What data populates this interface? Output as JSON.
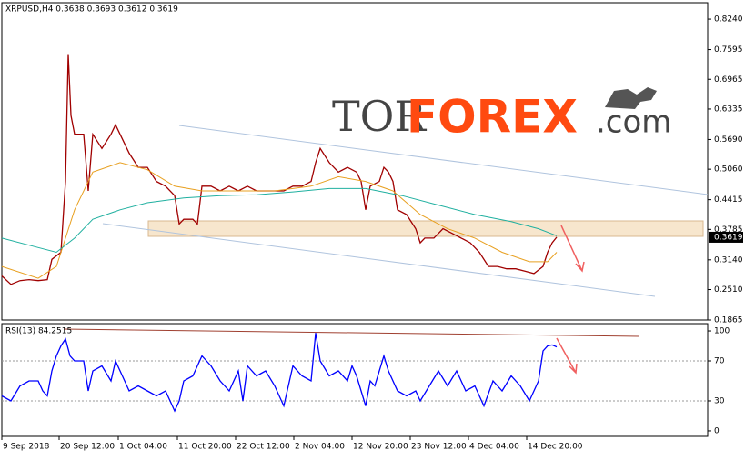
{
  "chart_data": [
    {
      "type": "line",
      "title": "XRPUSD,H4  0.3638 0.3693 0.3612 0.3619",
      "current_price": 0.3619,
      "xlim": [
        0,
        776
      ],
      "ylim": [
        0.1865,
        0.8588
      ],
      "yticks": [
        {
          "value": 0.824,
          "label": "0.8240"
        },
        0.7595,
        0.6965,
        0.6335,
        {
          "value": 0.569,
          "label": "0.5690"
        },
        {
          "value": 0.506,
          "label": "0.5060"
        },
        0.4415,
        0.3785,
        {
          "value": 0.314,
          "label": "0.3140"
        },
        {
          "value": 0.251,
          "label": "0.2510"
        },
        0.1865
      ],
      "xticks": [
        {
          "value": 0,
          "label": "9 Sep 2018"
        },
        {
          "value": 63,
          "label": "20 Sep 12:00"
        },
        {
          "value": 128,
          "label": "1 Oct 04:00"
        },
        {
          "value": 193,
          "label": "11 Oct 20:00"
        },
        {
          "value": 257,
          "label": "22 Oct 12:00"
        },
        {
          "value": 321,
          "label": "2 Nov 04:00"
        },
        {
          "value": 385,
          "label": "12 Nov 20:00"
        },
        {
          "value": 449,
          "label": "23 Nov 12:00"
        },
        {
          "value": 513,
          "label": "4 Dec 04:00"
        },
        {
          "value": 577,
          "label": "14 Dec 20:00"
        }
      ],
      "series": [
        {
          "color": "#a00000",
          "x": [
            0,
            10,
            20,
            30,
            40,
            50,
            55,
            65,
            70,
            73,
            76,
            80,
            90,
            95,
            100,
            110,
            120,
            125,
            130,
            140,
            150,
            160,
            170,
            180,
            190,
            195,
            200,
            210,
            215,
            220,
            230,
            240,
            250,
            260,
            270,
            280,
            290,
            300,
            310,
            320,
            330,
            340,
            345,
            350,
            360,
            370,
            380,
            390,
            395,
            400,
            405,
            415,
            420,
            425,
            430,
            435,
            445,
            455,
            460,
            465,
            475,
            485,
            495,
            505,
            515,
            525,
            535,
            545,
            555,
            565,
            575,
            585,
            595,
            600,
            605,
            610
          ],
          "values": [
            0.28,
            0.262,
            0.27,
            0.272,
            0.27,
            0.272,
            0.315,
            0.33,
            0.48,
            0.75,
            0.62,
            0.58,
            0.58,
            0.46,
            0.58,
            0.55,
            0.58,
            0.6,
            0.58,
            0.54,
            0.51,
            0.51,
            0.48,
            0.47,
            0.45,
            0.39,
            0.4,
            0.4,
            0.39,
            0.47,
            0.47,
            0.46,
            0.47,
            0.46,
            0.47,
            0.46,
            0.46,
            0.46,
            0.46,
            0.47,
            0.47,
            0.48,
            0.52,
            0.55,
            0.52,
            0.5,
            0.51,
            0.5,
            0.48,
            0.42,
            0.47,
            0.48,
            0.51,
            0.5,
            0.48,
            0.42,
            0.41,
            0.38,
            0.35,
            0.36,
            0.36,
            0.38,
            0.37,
            0.36,
            0.35,
            0.33,
            0.3,
            0.3,
            0.295,
            0.295,
            0.29,
            0.285,
            0.3,
            0.33,
            0.35,
            0.3619
          ]
        },
        {
          "color": "#e8a020",
          "x": [
            0,
            40,
            60,
            80,
            100,
            130,
            160,
            190,
            220,
            260,
            300,
            340,
            370,
            400,
            430,
            460,
            490,
            520,
            550,
            580,
            600,
            610
          ],
          "values": [
            0.3,
            0.275,
            0.3,
            0.42,
            0.5,
            0.52,
            0.505,
            0.47,
            0.46,
            0.46,
            0.46,
            0.47,
            0.49,
            0.48,
            0.46,
            0.41,
            0.38,
            0.36,
            0.33,
            0.31,
            0.31,
            0.33
          ]
        },
        {
          "color": "#20b0a0",
          "x": [
            0,
            40,
            60,
            80,
            100,
            130,
            160,
            200,
            240,
            280,
            320,
            360,
            400,
            440,
            480,
            520,
            560,
            590,
            610
          ],
          "values": [
            0.36,
            0.34,
            0.33,
            0.36,
            0.4,
            0.42,
            0.435,
            0.445,
            0.45,
            0.452,
            0.458,
            0.465,
            0.465,
            0.45,
            0.43,
            0.41,
            0.395,
            0.38,
            0.365
          ]
        }
      ]
    },
    {
      "type": "line",
      "title": "RSI(13) 84.2515",
      "xlim": [
        0,
        776
      ],
      "ylim": [
        -5.5,
        107.3
      ],
      "yticks": [
        100,
        70,
        30,
        0
      ],
      "series": [
        {
          "color": "#0000ff",
          "x": [
            0,
            10,
            20,
            30,
            40,
            45,
            50,
            55,
            60,
            65,
            70,
            75,
            80,
            90,
            95,
            100,
            110,
            120,
            125,
            130,
            140,
            150,
            160,
            170,
            180,
            190,
            195,
            200,
            210,
            215,
            220,
            230,
            240,
            250,
            260,
            265,
            270,
            280,
            290,
            300,
            310,
            320,
            330,
            340,
            345,
            350,
            360,
            370,
            380,
            385,
            390,
            400,
            405,
            410,
            420,
            425,
            435,
            445,
            455,
            460,
            470,
            480,
            490,
            500,
            510,
            520,
            530,
            540,
            550,
            560,
            570,
            580,
            585,
            590,
            595,
            600,
            605,
            610
          ],
          "values": [
            35,
            30,
            45,
            50,
            50,
            40,
            35,
            60,
            75,
            85,
            92,
            75,
            70,
            70,
            40,
            60,
            65,
            50,
            70,
            60,
            40,
            45,
            40,
            35,
            40,
            20,
            30,
            50,
            55,
            65,
            75,
            65,
            50,
            40,
            60,
            30,
            65,
            55,
            60,
            45,
            25,
            65,
            55,
            50,
            98,
            70,
            55,
            60,
            50,
            65,
            55,
            25,
            50,
            45,
            75,
            60,
            40,
            35,
            40,
            30,
            45,
            60,
            45,
            60,
            40,
            45,
            25,
            50,
            40,
            55,
            45,
            30,
            40,
            50,
            80,
            85,
            86,
            84
          ]
        }
      ]
    }
  ],
  "watermark": {
    "part1": "TOR",
    "part2": "FOREX",
    "part3": ".com"
  }
}
